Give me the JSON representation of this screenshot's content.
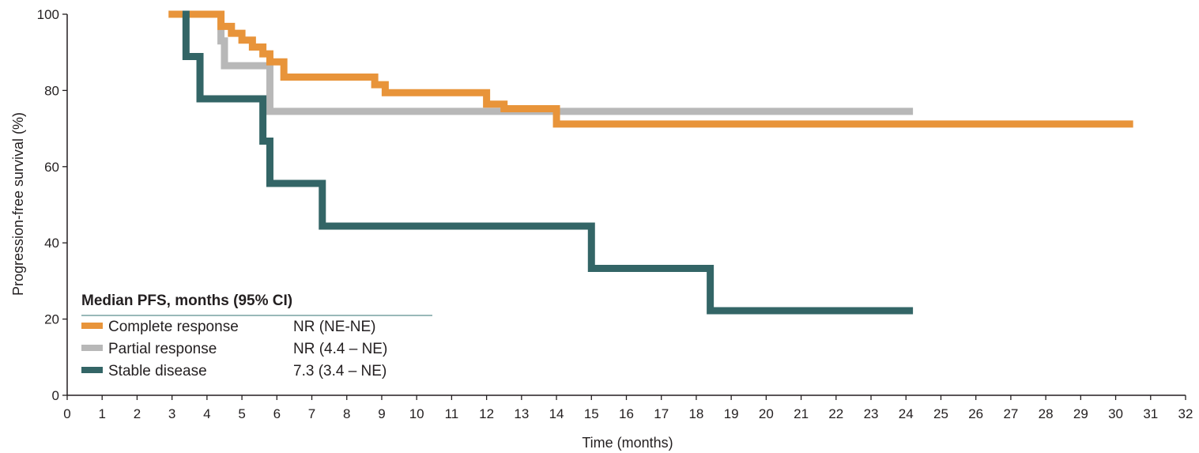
{
  "chart_data": {
    "type": "line",
    "title": "",
    "xlabel": "Time (months)",
    "ylabel": "Progression-free survival (%)",
    "xlim": [
      0,
      32
    ],
    "ylim": [
      0,
      100
    ],
    "x_ticks": [
      0,
      1,
      2,
      3,
      4,
      5,
      6,
      7,
      8,
      9,
      10,
      11,
      12,
      13,
      14,
      15,
      16,
      17,
      18,
      19,
      20,
      21,
      22,
      23,
      24,
      25,
      26,
      27,
      28,
      29,
      30,
      31,
      32
    ],
    "y_ticks": [
      0,
      20,
      40,
      60,
      80,
      100
    ],
    "grid": false,
    "step": true,
    "legend": {
      "title": "Median PFS, months (95% CI)",
      "position": "bottom-left",
      "entries": [
        {
          "name": "Complete response",
          "value": "NR (NE-NE)"
        },
        {
          "name": "Partial response",
          "value": "NR (4.4 – NE)"
        },
        {
          "name": "Stable disease",
          "value": "7.3 (3.4 – NE)"
        }
      ]
    },
    "series": [
      {
        "name": "Complete response",
        "color": "#e8943a",
        "x": [
          2.9,
          4.4,
          4.7,
          5.0,
          5.3,
          5.6,
          5.8,
          6.2,
          8.8,
          9.1,
          12.0,
          12.5,
          14.0,
          30.5
        ],
        "y": [
          100,
          96.8,
          95.0,
          93.2,
          91.4,
          89.6,
          87.5,
          83.5,
          81.5,
          79.4,
          76.4,
          75.2,
          71.2,
          71.2
        ]
      },
      {
        "name": "Partial response",
        "color": "#b8b8b8",
        "x": [
          3.2,
          4.4,
          4.5,
          5.8,
          12.5,
          24.2
        ],
        "y": [
          100,
          93.0,
          86.5,
          74.5,
          74.5,
          74.5
        ]
      },
      {
        "name": "Stable disease",
        "color": "#336566",
        "x": [
          3.3,
          3.4,
          3.8,
          5.6,
          5.8,
          7.3,
          15.0,
          18.4,
          24.2
        ],
        "y": [
          100,
          88.9,
          77.8,
          66.7,
          55.6,
          44.4,
          33.3,
          22.2,
          22.2
        ]
      }
    ]
  }
}
